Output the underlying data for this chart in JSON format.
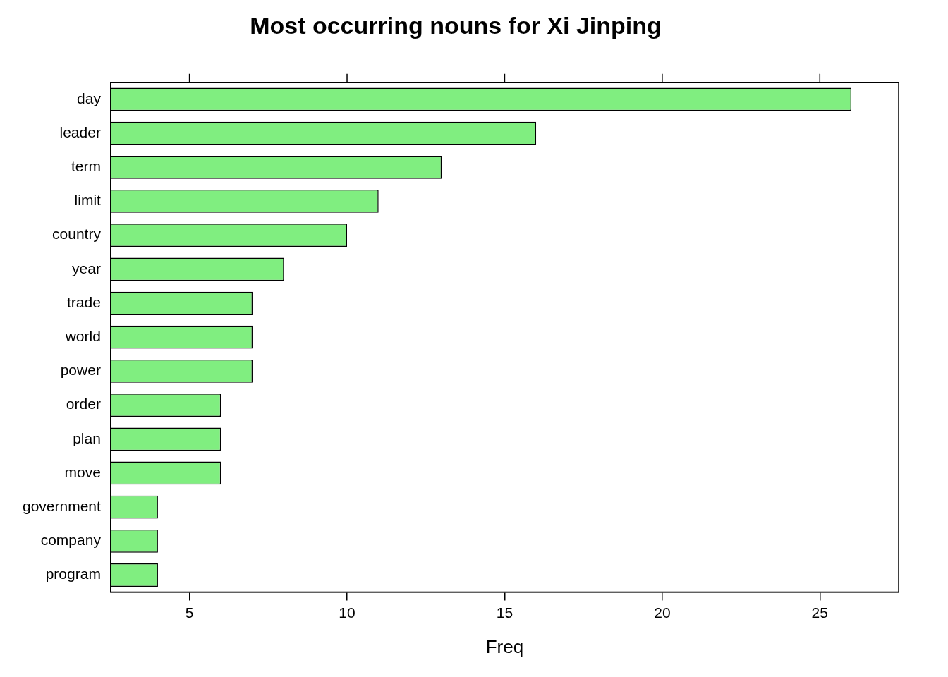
{
  "chart_data": {
    "type": "bar",
    "orientation": "horizontal",
    "title": "Most occurring nouns for Xi Jinping",
    "xlabel": "Freq",
    "categories": [
      "day",
      "leader",
      "term",
      "limit",
      "country",
      "year",
      "trade",
      "world",
      "power",
      "order",
      "plan",
      "move",
      "government",
      "company",
      "program"
    ],
    "values": [
      26,
      16,
      13,
      11,
      10,
      8,
      7,
      7,
      7,
      6,
      6,
      6,
      4,
      4,
      4
    ],
    "color": "#80ee80",
    "xlim": [
      2.5,
      27.5
    ],
    "xticks": [
      5,
      10,
      15,
      20,
      25
    ],
    "grid": false,
    "legend": false
  }
}
